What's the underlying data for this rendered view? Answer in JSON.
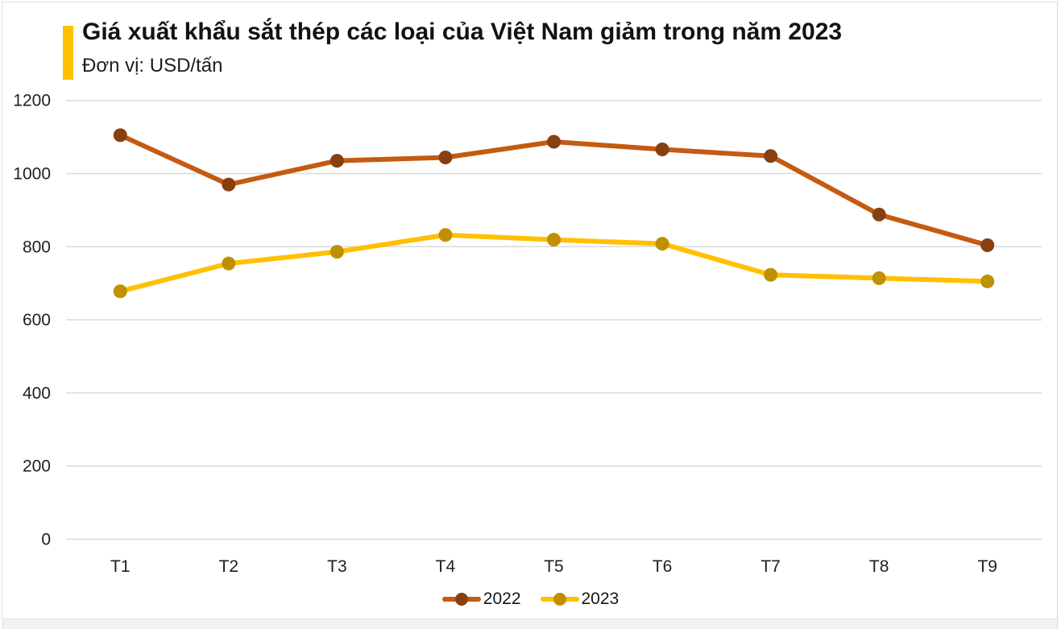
{
  "header": {
    "title": "Giá xuất khẩu sắt thép các loại của Việt Nam giảm trong năm 2023",
    "subtitle": "Đơn vị: USD/tấn",
    "accent_color": "#FFC000"
  },
  "chart_data": {
    "type": "line",
    "title": "Giá xuất khẩu sắt thép các loại của Việt Nam giảm trong năm 2023",
    "unit_label": "Đơn vị: USD/tấn",
    "categories": [
      "T1",
      "T2",
      "T3",
      "T4",
      "T5",
      "T6",
      "T7",
      "T8",
      "T9"
    ],
    "series": [
      {
        "name": "2022",
        "values": [
          1105,
          970,
          1035,
          1044,
          1087,
          1066,
          1048,
          888,
          804
        ],
        "line_color": "#C55A11",
        "marker_color": "#874010"
      },
      {
        "name": "2023",
        "values": [
          678,
          754,
          786,
          832,
          819,
          808,
          723,
          714,
          705
        ],
        "line_color": "#FFC000",
        "marker_color": "#BF9000"
      }
    ],
    "xlabel": "",
    "ylabel": "",
    "ylim": [
      0,
      1200
    ],
    "y_ticks": [
      0,
      200,
      400,
      600,
      800,
      1000,
      1200
    ],
    "grid": "horizontal",
    "gridline_color": "#D9D9D9",
    "axis_label_color": "#1f1f1f",
    "legend_position": "bottom"
  }
}
